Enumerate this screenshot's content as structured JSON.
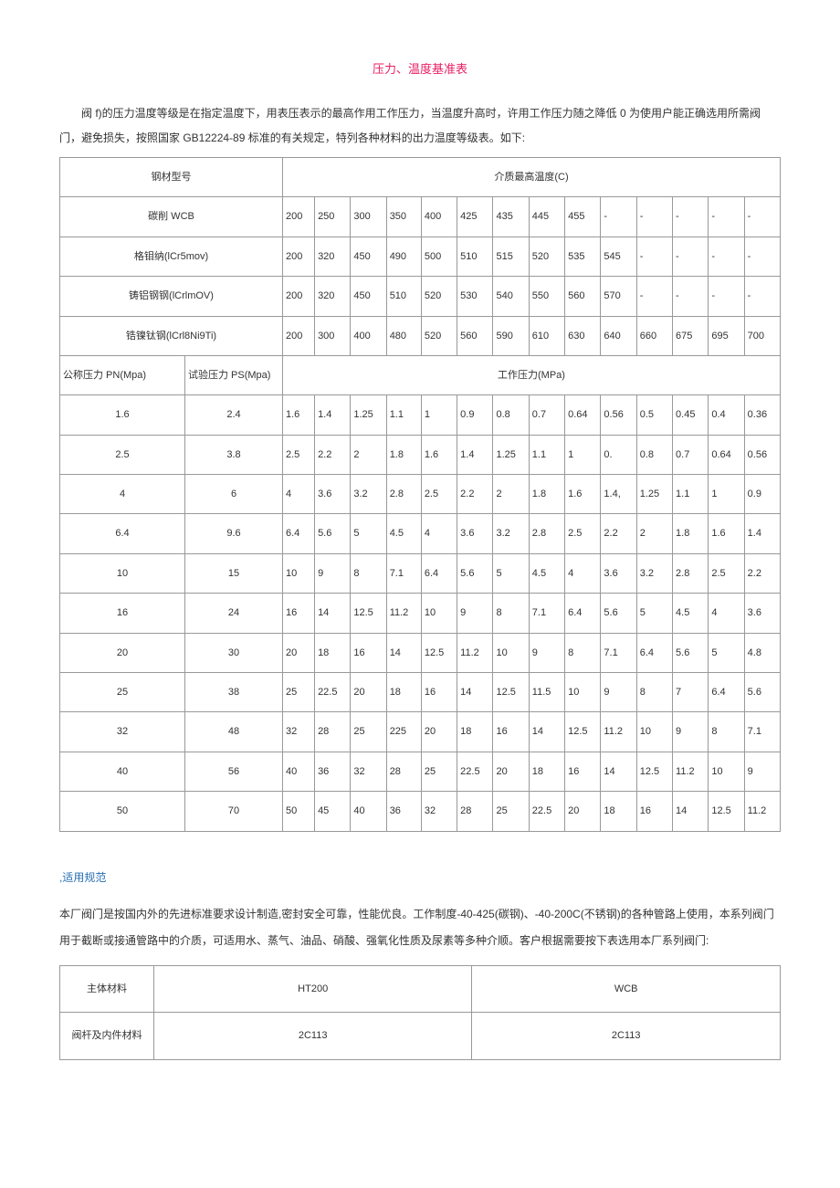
{
  "title": "压力、温度基准表",
  "intro": "阀 f)的压力温度等级是在指定温度下，用表压表示的最高作用工作压力，当温度升高时，许用工作压力随之降低 0 为使用户能正确选用所需阀门，避免损失，按照国家 GB12224-89 标准的有关规定，特列各种材料的出力温度等级表。如下:",
  "table1": {
    "header_left": "钢材型号",
    "header_right": "介质最高温度(C)",
    "material_rows": [
      {
        "name": "碳削 WCB",
        "vals": [
          "200",
          "250",
          "300",
          "350",
          "400",
          "425",
          "435",
          "445",
          "455",
          "-",
          "-",
          "-",
          "-",
          "-"
        ]
      },
      {
        "name": "格钼纳(lCr5mov)",
        "vals": [
          "200",
          "320",
          "450",
          "490",
          "500",
          "510",
          "515",
          "520",
          "535",
          "545",
          "-",
          "-",
          "-",
          "-"
        ]
      },
      {
        "name": "铸铝钢钢(lCrlmOV)",
        "vals": [
          "200",
          "320",
          "450",
          "510",
          "520",
          "530",
          "540",
          "550",
          "560",
          "570",
          "-",
          "-",
          "-",
          "-"
        ]
      },
      {
        "name": "锆镍钛钢(lCrl8Ni9Ti)",
        "vals": [
          "200",
          "300",
          "400",
          "480",
          "520",
          "560",
          "590",
          "610",
          "630",
          "640",
          "660",
          "675",
          "695",
          "700"
        ]
      }
    ],
    "sub_header_pn": "公称压力 PN(Mpa)",
    "sub_header_ps": "试验压力 PS(Mpa)",
    "sub_header_right": "工作压力(MPa)",
    "data_rows": [
      {
        "pn": "1.6",
        "ps": "2.4",
        "vals": [
          "1.6",
          "1.4",
          "1.25",
          "1.1",
          "1",
          "0.9",
          "0.8",
          "0.7",
          "0.64",
          "0.56",
          "0.5",
          "0.45",
          "0.4",
          "0.36"
        ]
      },
      {
        "pn": "2.5",
        "ps": "3.8",
        "vals": [
          "2.5",
          "2.2",
          "2",
          "1.8",
          "1.6",
          "1.4",
          "1.25",
          "1.1",
          "1",
          "0.",
          "0.8",
          "0.7",
          "0.64",
          "0.56"
        ]
      },
      {
        "pn": "4",
        "ps": "6",
        "vals": [
          "4",
          "3.6",
          "3.2",
          "2.8",
          "2.5",
          "2.2",
          "2",
          "1.8",
          "1.6",
          "1.4,",
          "1.25",
          "1.1",
          "1",
          "0.9"
        ]
      },
      {
        "pn": "6.4",
        "ps": "9.6",
        "vals": [
          "6.4",
          "5.6",
          "5",
          "4.5",
          "4",
          "3.6",
          "3.2",
          "2.8",
          "2.5",
          "2.2",
          "2",
          "1.8",
          "1.6",
          "1.4"
        ]
      },
      {
        "pn": "10",
        "ps": "15",
        "vals": [
          "10",
          "9",
          "8",
          "7.1",
          "6.4",
          "5.6",
          "5",
          "4.5",
          "4",
          "3.6",
          "3.2",
          "2.8",
          "2.5",
          "2.2"
        ]
      },
      {
        "pn": "16",
        "ps": "24",
        "vals": [
          "16",
          "14",
          "12.5",
          "11.2",
          "10",
          "9",
          "8",
          "7.1",
          "6.4",
          "5.6",
          "5",
          "4.5",
          "4",
          "3.6"
        ]
      },
      {
        "pn": "20",
        "ps": "30",
        "vals": [
          "20",
          "18",
          "16",
          "14",
          "12.5",
          "11.2",
          "10",
          "9",
          "8",
          "7.1",
          "6.4",
          "5.6",
          "5",
          "4.8"
        ]
      },
      {
        "pn": "25",
        "ps": "38",
        "vals": [
          "25",
          "22.5",
          "20",
          "18",
          "16",
          "14",
          "12.5",
          "11.5",
          "10",
          "9",
          "8",
          "7",
          "6.4",
          "5.6"
        ]
      },
      {
        "pn": "32",
        "ps": "48",
        "vals": [
          "32",
          "28",
          "25",
          "225",
          "20",
          "18",
          "16",
          "14",
          "12.5",
          "11.2",
          "10",
          "9",
          "8",
          "7.1"
        ]
      },
      {
        "pn": "40",
        "ps": "56",
        "vals": [
          "40",
          "36",
          "32",
          "28",
          "25",
          "22.5",
          "20",
          "18",
          "16",
          "14",
          "12.5",
          "11.2",
          "10",
          "9"
        ]
      },
      {
        "pn": "50",
        "ps": "70",
        "vals": [
          "50",
          "45",
          "40",
          "36",
          "32",
          "28",
          "25",
          "22.5",
          "20",
          "18",
          "16",
          "14",
          "12.5",
          "11.2"
        ]
      }
    ]
  },
  "section2_head": ",适用规范",
  "section2_body": "本厂阀门是按国内外的先进标准要求设计制造,密封安全可靠，性能优良。工作制度-40-425(碳钢)、-40-200C(不锈钢)的各种管路上使用，本系列阀门用于截断或接通管路中的介质，可适用水、蒸气、油品、硝酸、强氧化性质及尿素等多种介顺。客户根据需要按下表选用本厂系列阀门:",
  "table2": {
    "rows": [
      {
        "label": "主体材料",
        "c1": "HT200",
        "c2": "WCB"
      },
      {
        "label": "阀杆及内件材料",
        "c1": "2C113",
        "c2": "2C113"
      }
    ]
  }
}
